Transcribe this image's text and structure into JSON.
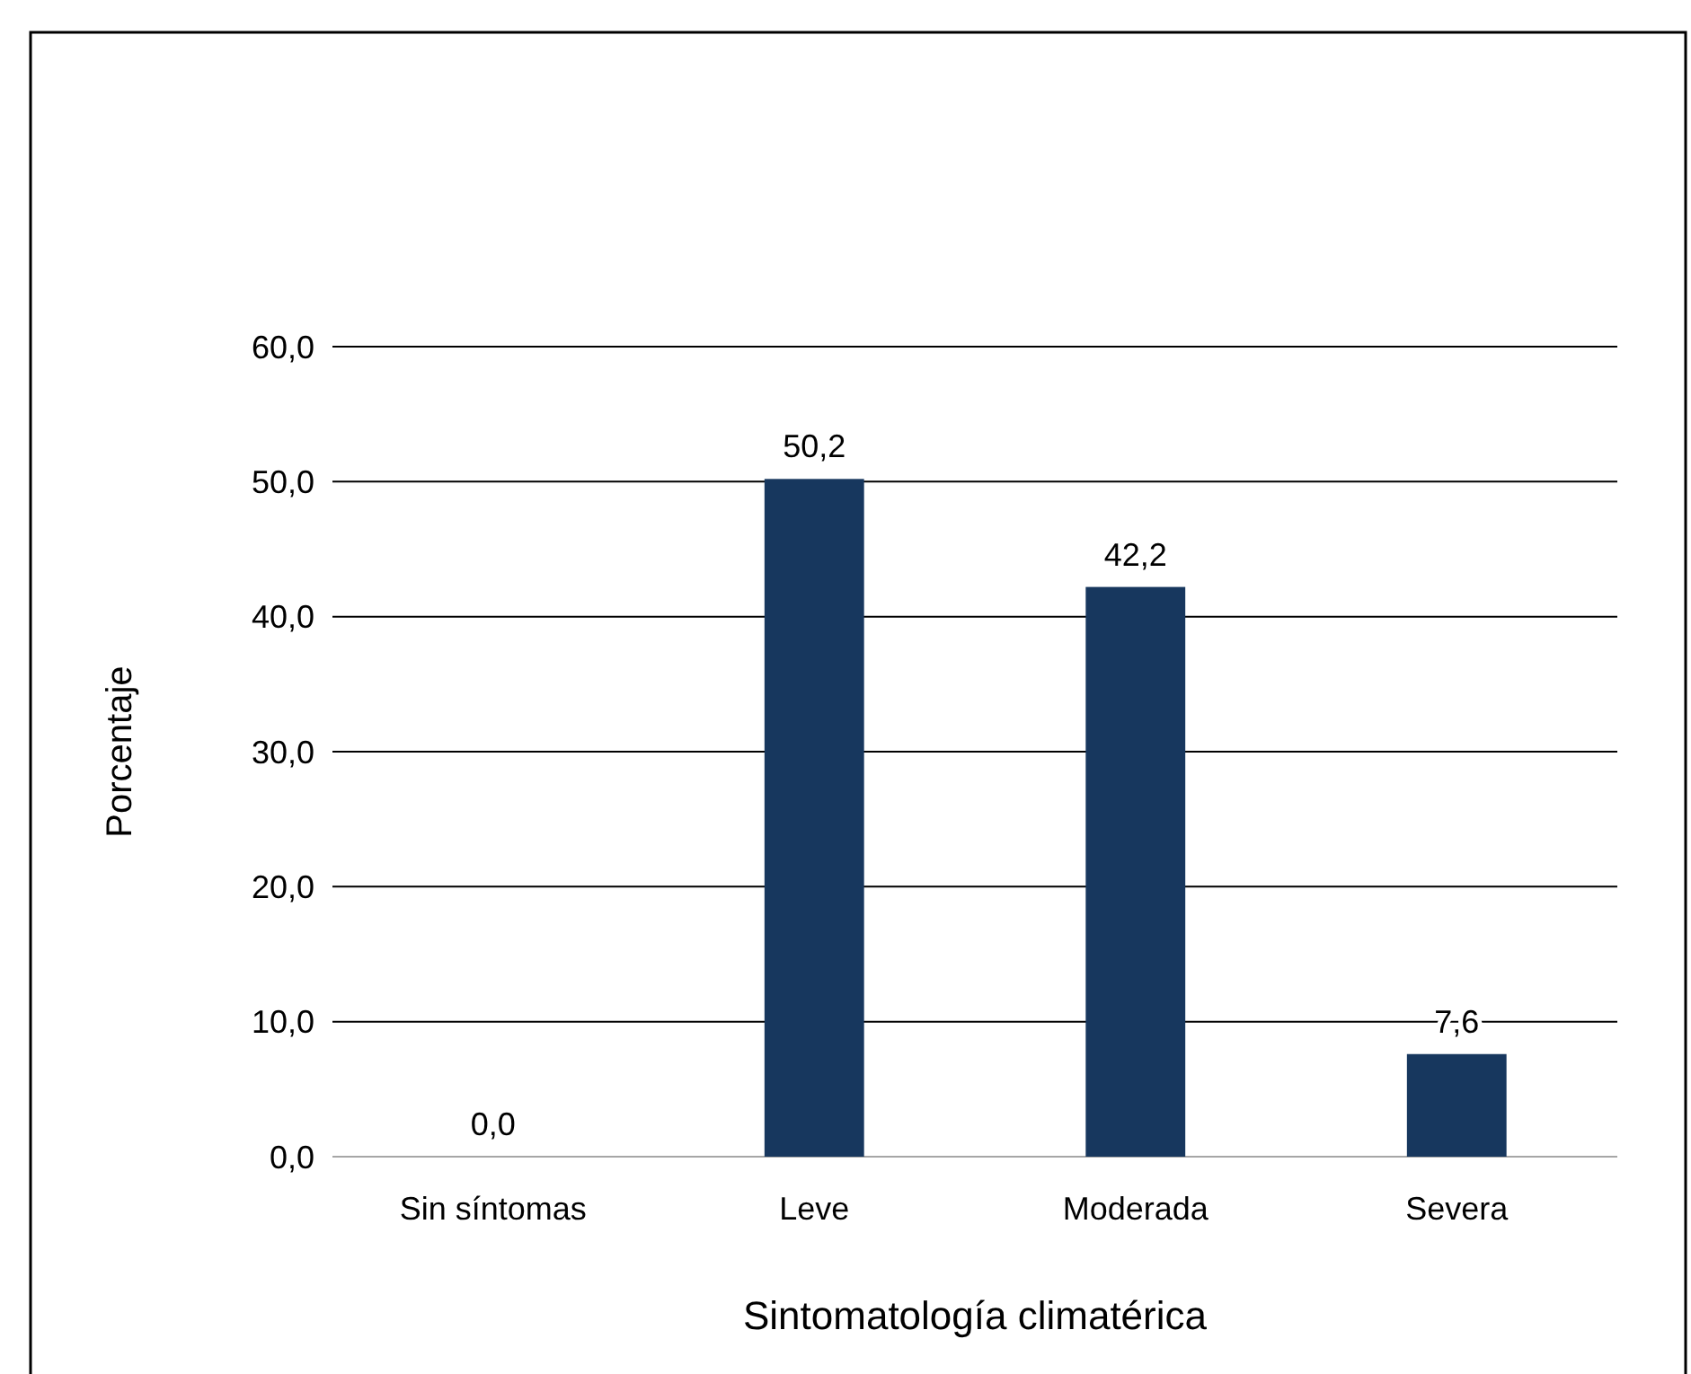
{
  "chart_data": {
    "type": "bar",
    "xlabel": "Sintomatología climatérica",
    "ylabel": "Porcentaje",
    "categories": [
      "Sin síntomas",
      "Leve",
      "Moderada",
      "Severa"
    ],
    "values": [
      0,
      50.2,
      42.2,
      7.6
    ],
    "value_labels": [
      "0,0",
      "50,2",
      "42,2",
      "7,6"
    ],
    "color": "#17375e",
    "ylim": [
      0,
      60
    ],
    "yticks": [
      {
        "value": 0,
        "label": "0,0"
      },
      {
        "value": 10,
        "label": "10,0"
      },
      {
        "value": 20,
        "label": "20,0"
      },
      {
        "value": 30,
        "label": "30,0"
      },
      {
        "value": 40,
        "label": "40,0"
      },
      {
        "value": 50,
        "label": "50,0"
      },
      {
        "value": 60,
        "label": "60,0"
      }
    ],
    "grid": "y"
  }
}
